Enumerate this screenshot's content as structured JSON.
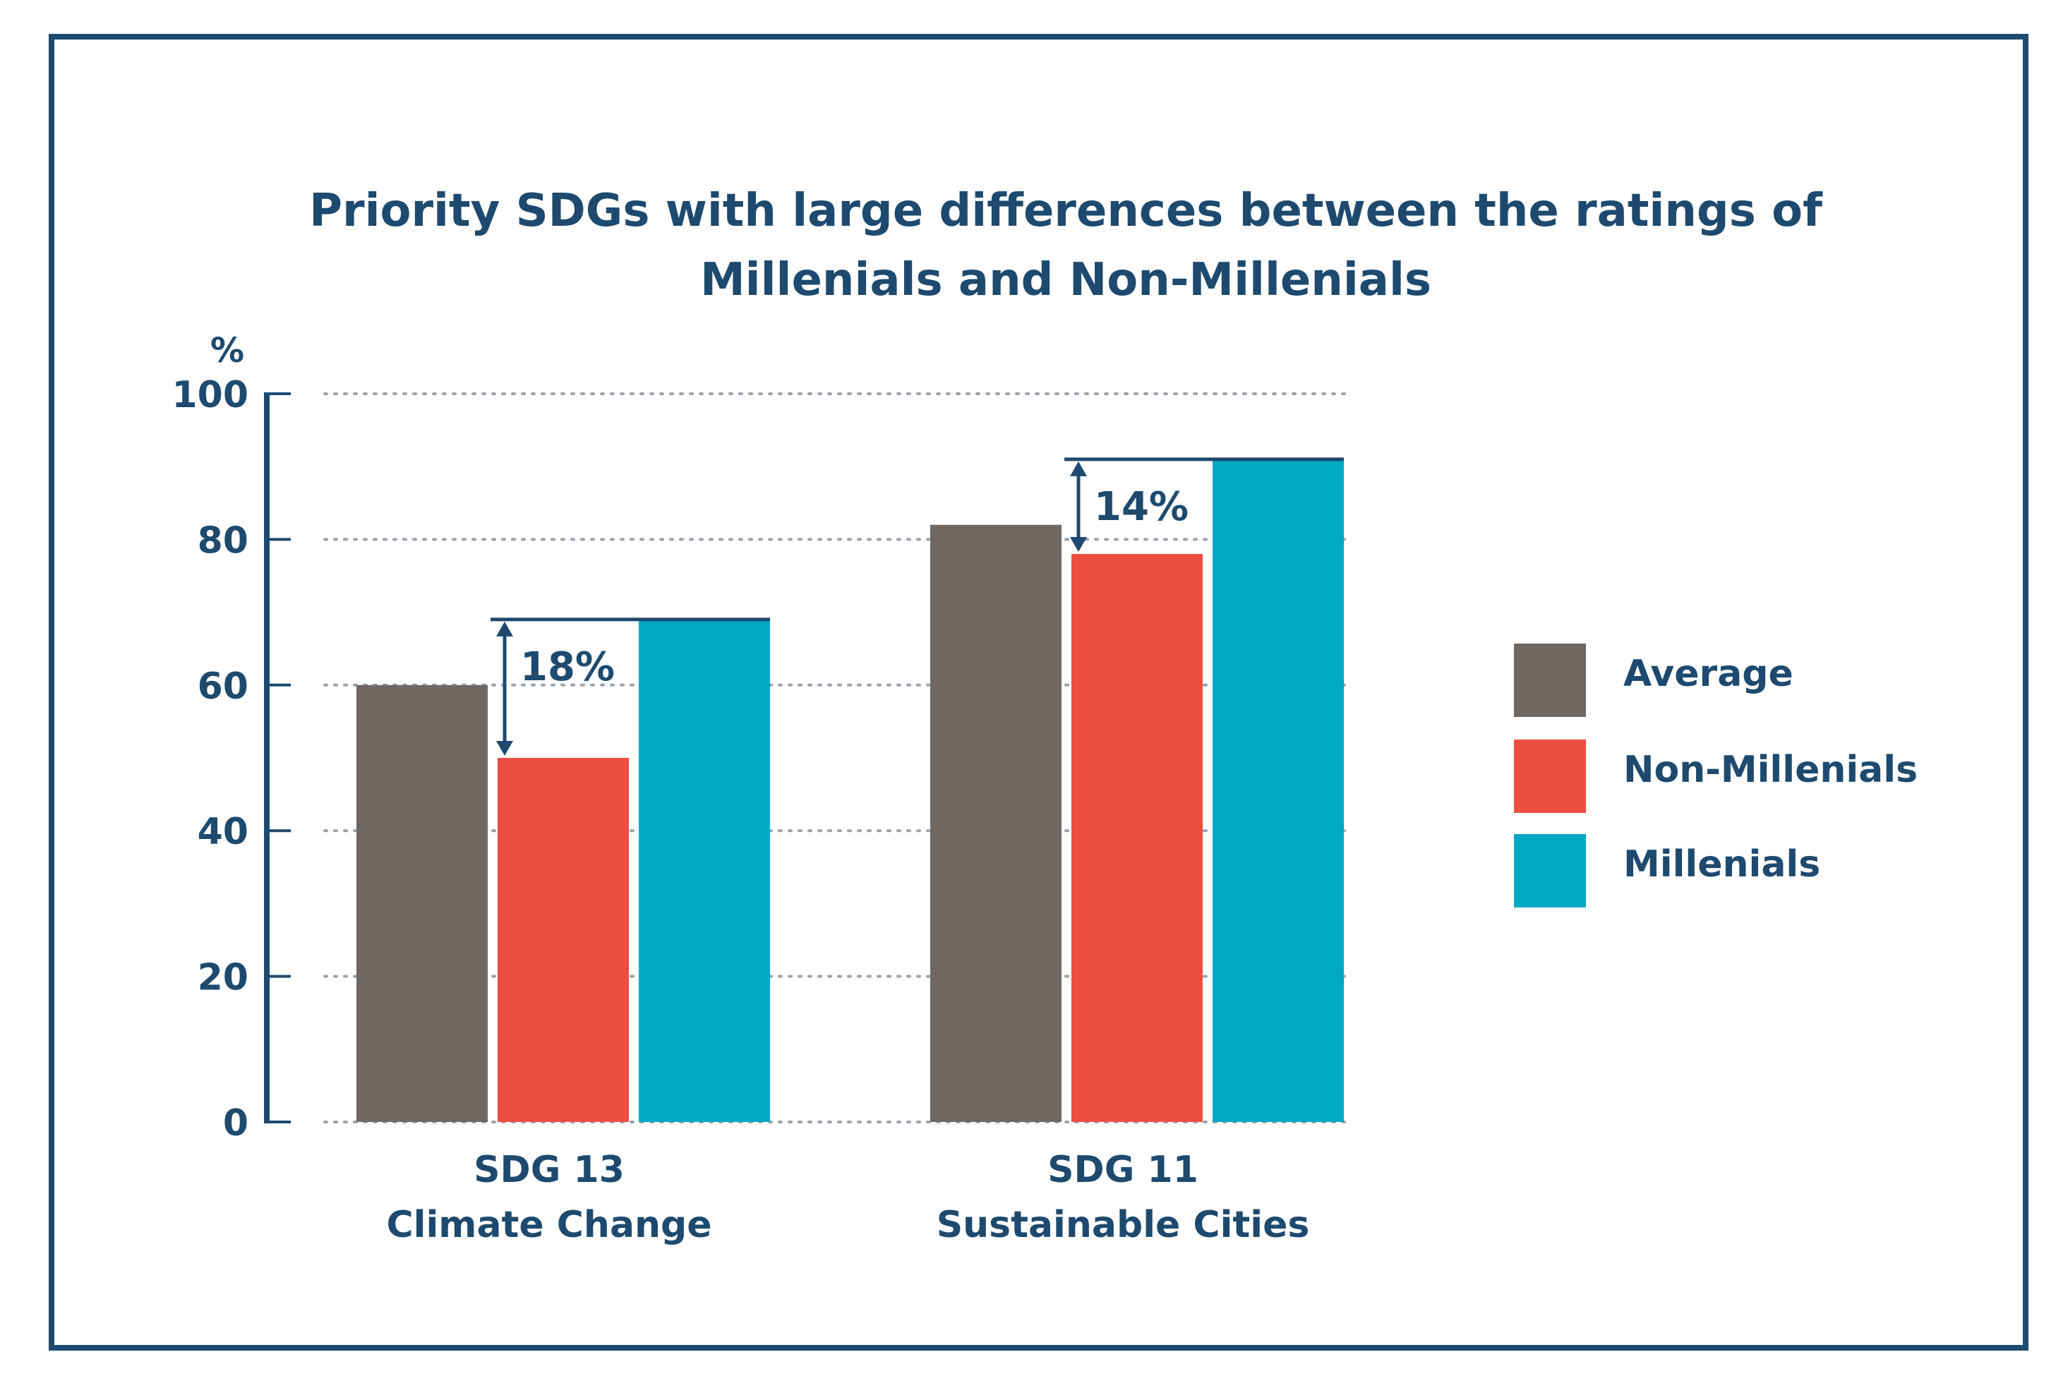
{
  "chart_data": {
    "type": "bar",
    "title_lines": [
      "Priority SDGs with large differences between the ratings of",
      "Millenials and Non-Millenials"
    ],
    "y_unit": "%",
    "ylim": [
      0,
      100
    ],
    "yticks": [
      0,
      20,
      40,
      60,
      80,
      100
    ],
    "ytick_labels": [
      "0",
      "20",
      "40",
      "60",
      "80",
      "100"
    ],
    "grid": true,
    "categories": [
      {
        "line1": "SDG 13",
        "line2": "Climate Change"
      },
      {
        "line1": "SDG 11",
        "line2": "Sustainable Cities"
      }
    ],
    "series": [
      {
        "name": "Average",
        "color": "#6e6762",
        "values": [
          60,
          82
        ]
      },
      {
        "name": "Non-Millenials",
        "color": "#ec4f42",
        "values": [
          50,
          78
        ]
      },
      {
        "name": "Millenials",
        "color": "#00a9c5",
        "values": [
          69,
          91
        ]
      }
    ],
    "annotations": [
      {
        "category_index": 0,
        "label": "18%"
      },
      {
        "category_index": 1,
        "label": "14%"
      }
    ],
    "legend_position": "right"
  },
  "colors": {
    "text": "#1d4a6e",
    "frame": "#1d4a6e",
    "axis": "#1d4a6e",
    "grid": "#9aa3ad"
  }
}
